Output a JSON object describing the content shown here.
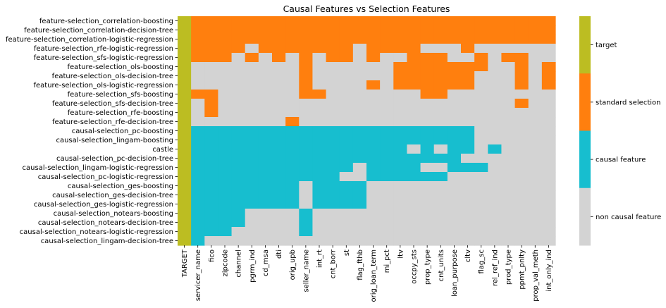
{
  "chart_data": {
    "type": "heatmap",
    "title": "Causal Features vs Selection Features",
    "rows": [
      "feature-selection_correlation-boosting",
      "feature-selection_correlation-decision-tree",
      "feature-selection_correlation-logistic-regression",
      "feature-selection_rfe-logistic-regression",
      "feature-selection_sfs-logistic-regression",
      "feature-selection_ols-boosting",
      "feature-selection_ols-decision-tree",
      "feature-selection_ols-logistic-regression",
      "feature-selection_sfs-boosting",
      "feature-selection_sfs-decision-tree",
      "feature-selection_rfe-boosting",
      "feature-selection_rfe-decision-tree",
      "causal-selection_pc-boosting",
      "causal-selection_lingam-boosting",
      "castle",
      "causal-selection_pc-decision-tree",
      "causal-selection_lingam-logistic-regression",
      "causal-selection_pc-logistic-regression",
      "causal-selection_ges-boosting",
      "causal-selection_ges-decision-tree",
      "causal-selection_ges-logistic-regression",
      "causal-selection_notears-boosting",
      "causal-selection_notears-decision-tree",
      "causal-selection_notears-logistic-regression",
      "causal-selection_lingam-decision-tree"
    ],
    "columns": [
      "TARGET",
      "servicer_name",
      "fico",
      "zipcode",
      "channel",
      "pgrm_ind",
      "cd_msa",
      "dti",
      "orig_upb",
      "seller_name",
      "int_rt",
      "cnt_borr",
      "st",
      "flag_fthb",
      "orig_loan_term",
      "mi_pct",
      "ltv",
      "occpy_sts",
      "prop_type",
      "cnt_units",
      "loan_purpose",
      "cltv",
      "flag_sc",
      "rel_ref_ind",
      "prod_type",
      "ppmt_pnlty",
      "prop_val_meth",
      "int_only_ind"
    ],
    "categories": [
      {
        "code": 0,
        "label": "non causal feature",
        "color": "#d3d3d3"
      },
      {
        "code": 1,
        "label": "causal feature",
        "color": "#17becf"
      },
      {
        "code": 2,
        "label": "standard selection",
        "color": "#ff7f0e"
      },
      {
        "code": 3,
        "label": "target",
        "color": "#bcbd22"
      }
    ],
    "legend_placement": "right",
    "values": [
      [
        3,
        2,
        2,
        2,
        2,
        2,
        2,
        2,
        2,
        2,
        2,
        2,
        2,
        2,
        2,
        2,
        2,
        2,
        2,
        2,
        2,
        2,
        2,
        2,
        2,
        2,
        2,
        2
      ],
      [
        3,
        2,
        2,
        2,
        2,
        2,
        2,
        2,
        2,
        2,
        2,
        2,
        2,
        2,
        2,
        2,
        2,
        2,
        2,
        2,
        2,
        2,
        2,
        2,
        2,
        2,
        2,
        2
      ],
      [
        3,
        2,
        2,
        2,
        2,
        2,
        2,
        2,
        2,
        2,
        2,
        2,
        2,
        2,
        2,
        2,
        2,
        2,
        2,
        2,
        2,
        2,
        2,
        2,
        2,
        2,
        2,
        2
      ],
      [
        3,
        2,
        2,
        2,
        2,
        0,
        2,
        2,
        2,
        2,
        2,
        2,
        2,
        0,
        2,
        2,
        2,
        2,
        0,
        0,
        0,
        2,
        0,
        0,
        0,
        0,
        0,
        0
      ],
      [
        3,
        2,
        2,
        2,
        0,
        2,
        0,
        2,
        0,
        2,
        0,
        2,
        2,
        0,
        2,
        0,
        0,
        2,
        2,
        2,
        0,
        0,
        2,
        0,
        2,
        2,
        0,
        0
      ],
      [
        3,
        0,
        0,
        0,
        0,
        0,
        0,
        0,
        0,
        2,
        0,
        0,
        0,
        0,
        0,
        0,
        2,
        2,
        2,
        2,
        2,
        2,
        2,
        0,
        0,
        2,
        0,
        2
      ],
      [
        3,
        0,
        0,
        0,
        0,
        0,
        0,
        0,
        0,
        2,
        0,
        0,
        0,
        0,
        0,
        0,
        2,
        2,
        2,
        2,
        2,
        2,
        0,
        0,
        0,
        2,
        0,
        2
      ],
      [
        3,
        0,
        0,
        0,
        0,
        0,
        0,
        0,
        0,
        2,
        0,
        0,
        0,
        0,
        2,
        0,
        2,
        2,
        2,
        2,
        2,
        2,
        0,
        0,
        0,
        2,
        0,
        2
      ],
      [
        3,
        2,
        2,
        0,
        0,
        0,
        0,
        0,
        0,
        2,
        2,
        0,
        0,
        0,
        0,
        0,
        0,
        0,
        2,
        2,
        0,
        0,
        0,
        0,
        0,
        0,
        0,
        0
      ],
      [
        3,
        0,
        2,
        0,
        0,
        0,
        0,
        0,
        0,
        0,
        0,
        0,
        0,
        0,
        0,
        0,
        0,
        0,
        0,
        0,
        0,
        0,
        0,
        0,
        0,
        2,
        0,
        0
      ],
      [
        3,
        0,
        2,
        0,
        0,
        0,
        0,
        0,
        0,
        0,
        0,
        0,
        0,
        0,
        0,
        0,
        0,
        0,
        0,
        0,
        0,
        0,
        0,
        0,
        0,
        0,
        0,
        0
      ],
      [
        3,
        0,
        0,
        0,
        0,
        0,
        0,
        0,
        2,
        0,
        0,
        0,
        0,
        0,
        0,
        0,
        0,
        0,
        0,
        0,
        0,
        0,
        0,
        0,
        0,
        0,
        0,
        0
      ],
      [
        3,
        1,
        1,
        1,
        1,
        1,
        1,
        1,
        1,
        1,
        1,
        1,
        1,
        1,
        1,
        1,
        1,
        1,
        1,
        1,
        1,
        1,
        0,
        0,
        0,
        0,
        0,
        0
      ],
      [
        3,
        1,
        1,
        1,
        1,
        1,
        1,
        1,
        1,
        1,
        1,
        1,
        1,
        1,
        1,
        1,
        1,
        1,
        1,
        1,
        1,
        1,
        0,
        0,
        0,
        0,
        0,
        0
      ],
      [
        3,
        1,
        1,
        1,
        1,
        1,
        1,
        1,
        1,
        1,
        1,
        1,
        1,
        1,
        1,
        1,
        1,
        0,
        1,
        0,
        1,
        1,
        0,
        1,
        0,
        0,
        0,
        0
      ],
      [
        3,
        1,
        1,
        1,
        1,
        1,
        1,
        1,
        1,
        1,
        1,
        1,
        1,
        1,
        1,
        1,
        1,
        1,
        1,
        1,
        1,
        0,
        0,
        0,
        0,
        0,
        0,
        0
      ],
      [
        3,
        1,
        1,
        1,
        1,
        1,
        1,
        1,
        1,
        1,
        1,
        1,
        1,
        0,
        1,
        1,
        1,
        1,
        0,
        0,
        1,
        1,
        1,
        0,
        0,
        0,
        0,
        0
      ],
      [
        3,
        1,
        1,
        1,
        1,
        1,
        1,
        1,
        1,
        1,
        1,
        1,
        0,
        0,
        1,
        1,
        1,
        1,
        1,
        1,
        0,
        0,
        0,
        0,
        0,
        0,
        0,
        0
      ],
      [
        3,
        1,
        1,
        1,
        1,
        1,
        1,
        1,
        1,
        0,
        1,
        1,
        1,
        1,
        0,
        0,
        0,
        0,
        0,
        0,
        0,
        0,
        0,
        0,
        0,
        0,
        0,
        0
      ],
      [
        3,
        1,
        1,
        1,
        1,
        1,
        1,
        1,
        1,
        0,
        1,
        1,
        1,
        1,
        0,
        0,
        0,
        0,
        0,
        0,
        0,
        0,
        0,
        0,
        0,
        0,
        0,
        0
      ],
      [
        3,
        1,
        1,
        1,
        1,
        1,
        1,
        1,
        1,
        0,
        1,
        1,
        1,
        1,
        0,
        0,
        0,
        0,
        0,
        0,
        0,
        0,
        0,
        0,
        0,
        0,
        0,
        0
      ],
      [
        3,
        1,
        1,
        1,
        1,
        0,
        0,
        0,
        0,
        1,
        0,
        0,
        0,
        0,
        0,
        0,
        0,
        0,
        0,
        0,
        0,
        0,
        0,
        0,
        0,
        0,
        0,
        0
      ],
      [
        3,
        1,
        1,
        1,
        1,
        0,
        0,
        0,
        0,
        1,
        0,
        0,
        0,
        0,
        0,
        0,
        0,
        0,
        0,
        0,
        0,
        0,
        0,
        0,
        0,
        0,
        0,
        0
      ],
      [
        3,
        1,
        1,
        1,
        0,
        0,
        0,
        0,
        0,
        1,
        0,
        0,
        0,
        0,
        0,
        0,
        0,
        0,
        0,
        0,
        0,
        0,
        0,
        0,
        0,
        0,
        0,
        0
      ],
      [
        3,
        1,
        0,
        0,
        0,
        0,
        0,
        0,
        0,
        0,
        0,
        0,
        0,
        0,
        0,
        0,
        0,
        0,
        0,
        0,
        0,
        0,
        0,
        0,
        0,
        0,
        0,
        0
      ]
    ]
  }
}
